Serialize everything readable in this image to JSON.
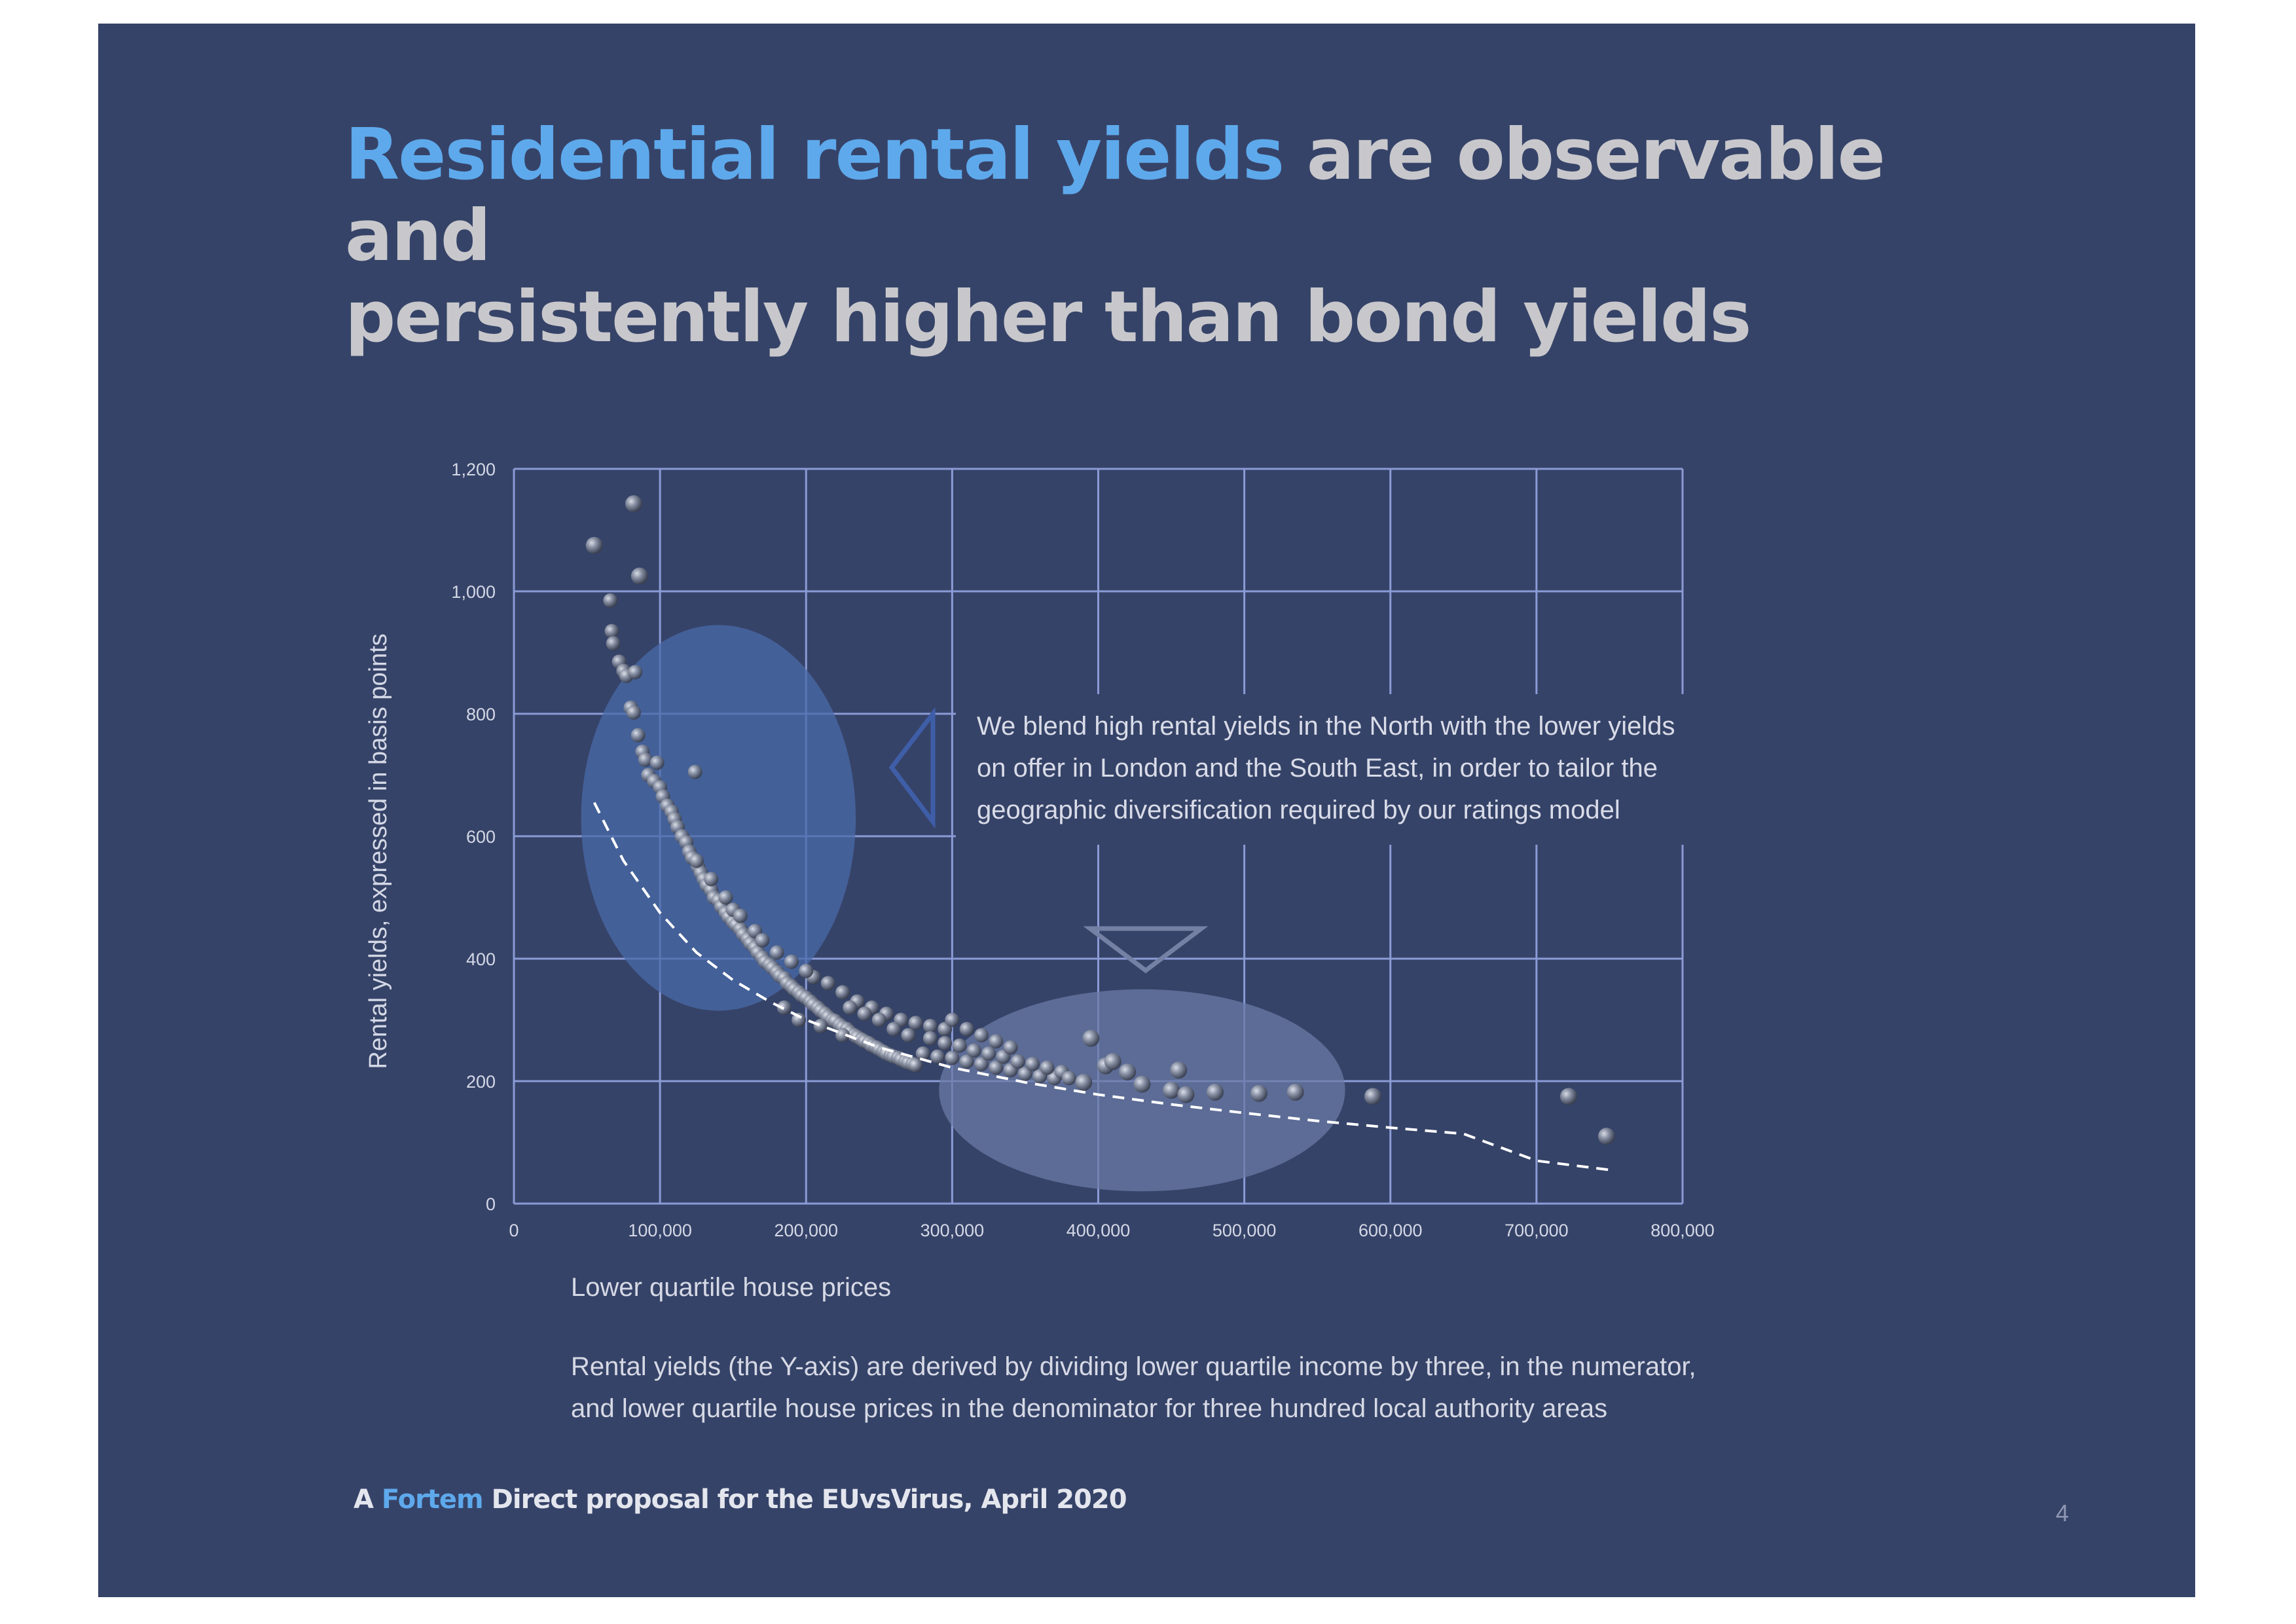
{
  "slide": {
    "title_highlight": "Residential rental yields",
    "title_rest_line1": " are observable and",
    "title_line2": "persistently higher than bond yields",
    "callout_lines": [
      "We blend high rental yields in the North with the lower yields",
      "on offer in London and the South East, in order to tailor the",
      "geographic diversification required by our ratings model"
    ],
    "note_lines": [
      "Rental yields (the Y-axis) are derived by dividing lower quartile income by three, in the numerator,",
      "and lower quartile house prices in the denominator for three hundred local authority areas"
    ],
    "footer": {
      "prefix": "A ",
      "brand": "Fortem",
      "suffix": " Direct proposal for the EUvsVirus, April 2020"
    },
    "page_number": "4"
  },
  "colors": {
    "background": "#364368",
    "title_highlight": "#5ea9ec",
    "title_text": "#c8c8cc",
    "grid": "#8a9bd6",
    "ellipse_left": "#4a6aa8",
    "ellipse_right": "#6a7aa6",
    "trend": "#ffffff",
    "points": "#9aa0b0"
  },
  "chart_data": {
    "type": "scatter",
    "title": "",
    "xlabel": "Lower quartile house prices",
    "ylabel": "Rental yields, expressed in basis points",
    "xlim": [
      0,
      800000
    ],
    "ylim": [
      0,
      1200
    ],
    "x_ticks": [
      0,
      100000,
      200000,
      300000,
      400000,
      500000,
      600000,
      700000,
      800000
    ],
    "x_tick_labels": [
      "0",
      "100,000",
      "200,000",
      "300,000",
      "400,000",
      "500,000",
      "600,000",
      "700,000",
      "800,000"
    ],
    "y_ticks": [
      0,
      200,
      400,
      600,
      800,
      1000,
      1200
    ],
    "y_tick_labels": [
      "0",
      "200",
      "400",
      "600",
      "800",
      "1,000",
      "1,200"
    ],
    "grid": true,
    "highlight_regions": [
      {
        "name": "North (high yields)",
        "x_center": 140000,
        "y_center": 630,
        "x_radius": 94000,
        "y_radius": 315
      },
      {
        "name": "London and South East (lower yields)",
        "x_center": 430000,
        "y_center": 185,
        "x_radius": 139000,
        "y_radius": 165
      }
    ],
    "trendline": {
      "type": "power",
      "x": [
        55000,
        75000,
        100000,
        125000,
        150000,
        175000,
        200000,
        250000,
        300000,
        350000,
        400000,
        450000,
        500000,
        550000,
        600000,
        650000,
        700000,
        750000
      ],
      "y": [
        655,
        560,
        475,
        410,
        365,
        330,
        300,
        255,
        222,
        198,
        178,
        162,
        148,
        135,
        124,
        114,
        70,
        55
      ]
    },
    "series": [
      {
        "name": "Local authority areas",
        "points": [
          [
            55000,
            1075
          ],
          [
            82000,
            1143
          ],
          [
            86000,
            1025
          ],
          [
            66000,
            985
          ],
          [
            67000,
            935
          ],
          [
            68000,
            915
          ],
          [
            72000,
            885
          ],
          [
            75000,
            870
          ],
          [
            77000,
            862
          ],
          [
            83000,
            868
          ],
          [
            80000,
            810
          ],
          [
            82000,
            802
          ],
          [
            85000,
            765
          ],
          [
            88000,
            738
          ],
          [
            90000,
            725
          ],
          [
            92000,
            700
          ],
          [
            96000,
            690
          ],
          [
            98000,
            720
          ],
          [
            100000,
            680
          ],
          [
            102000,
            665
          ],
          [
            105000,
            650
          ],
          [
            108000,
            640
          ],
          [
            110000,
            628
          ],
          [
            112000,
            615
          ],
          [
            115000,
            600
          ],
          [
            118000,
            590
          ],
          [
            120000,
            575
          ],
          [
            122000,
            565
          ],
          [
            124000,
            705
          ],
          [
            126000,
            550
          ],
          [
            128000,
            540
          ],
          [
            130000,
            530
          ],
          [
            132000,
            520
          ],
          [
            135000,
            512
          ],
          [
            137000,
            500
          ],
          [
            140000,
            495
          ],
          [
            142000,
            485
          ],
          [
            145000,
            475
          ],
          [
            147000,
            468
          ],
          [
            150000,
            460
          ],
          [
            152000,
            455
          ],
          [
            155000,
            448
          ],
          [
            157000,
            440
          ],
          [
            160000,
            432
          ],
          [
            162000,
            425
          ],
          [
            165000,
            418
          ],
          [
            167000,
            410
          ],
          [
            170000,
            402
          ],
          [
            172000,
            395
          ],
          [
            175000,
            390
          ],
          [
            177000,
            385
          ],
          [
            180000,
            378
          ],
          [
            182000,
            372
          ],
          [
            185000,
            368
          ],
          [
            187000,
            360
          ],
          [
            190000,
            355
          ],
          [
            192000,
            350
          ],
          [
            195000,
            345
          ],
          [
            197000,
            340
          ],
          [
            200000,
            336
          ],
          [
            203000,
            330
          ],
          [
            205000,
            325
          ],
          [
            208000,
            320
          ],
          [
            210000,
            315
          ],
          [
            213000,
            310
          ],
          [
            215000,
            305
          ],
          [
            218000,
            300
          ],
          [
            220000,
            298
          ],
          [
            223000,
            292
          ],
          [
            225000,
            288
          ],
          [
            228000,
            285
          ],
          [
            230000,
            280
          ],
          [
            233000,
            275
          ],
          [
            235000,
            272
          ],
          [
            238000,
            268
          ],
          [
            240000,
            265
          ],
          [
            243000,
            262
          ],
          [
            245000,
            258
          ],
          [
            248000,
            255
          ],
          [
            250000,
            252
          ],
          [
            253000,
            248
          ],
          [
            255000,
            245
          ],
          [
            258000,
            242
          ],
          [
            260000,
            240
          ],
          [
            263000,
            238
          ],
          [
            265000,
            235
          ],
          [
            268000,
            232
          ],
          [
            270000,
            230
          ],
          [
            273000,
            228
          ],
          [
            275000,
            226
          ],
          [
            205000,
            370
          ],
          [
            215000,
            360
          ],
          [
            225000,
            345
          ],
          [
            235000,
            330
          ],
          [
            245000,
            320
          ],
          [
            255000,
            310
          ],
          [
            265000,
            300
          ],
          [
            275000,
            295
          ],
          [
            285000,
            290
          ],
          [
            295000,
            285
          ],
          [
            180000,
            410
          ],
          [
            190000,
            395
          ],
          [
            200000,
            380
          ],
          [
            165000,
            445
          ],
          [
            170000,
            430
          ],
          [
            150000,
            480
          ],
          [
            155000,
            470
          ],
          [
            145000,
            500
          ],
          [
            135000,
            530
          ],
          [
            125000,
            560
          ],
          [
            280000,
            245
          ],
          [
            290000,
            240
          ],
          [
            300000,
            238
          ],
          [
            310000,
            232
          ],
          [
            320000,
            228
          ],
          [
            330000,
            222
          ],
          [
            340000,
            218
          ],
          [
            350000,
            212
          ],
          [
            360000,
            208
          ],
          [
            370000,
            205
          ],
          [
            285000,
            270
          ],
          [
            295000,
            262
          ],
          [
            305000,
            258
          ],
          [
            315000,
            250
          ],
          [
            325000,
            245
          ],
          [
            335000,
            240
          ],
          [
            345000,
            232
          ],
          [
            355000,
            228
          ],
          [
            365000,
            222
          ],
          [
            375000,
            215
          ],
          [
            300000,
            300
          ],
          [
            310000,
            285
          ],
          [
            320000,
            275
          ],
          [
            330000,
            265
          ],
          [
            340000,
            255
          ],
          [
            260000,
            285
          ],
          [
            270000,
            275
          ],
          [
            250000,
            300
          ],
          [
            240000,
            310
          ],
          [
            230000,
            320
          ],
          [
            380000,
            205
          ],
          [
            390000,
            198
          ],
          [
            395000,
            270
          ],
          [
            405000,
            225
          ],
          [
            410000,
            232
          ],
          [
            420000,
            215
          ],
          [
            430000,
            195
          ],
          [
            450000,
            185
          ],
          [
            455000,
            218
          ],
          [
            460000,
            178
          ],
          [
            480000,
            182
          ],
          [
            510000,
            180
          ],
          [
            535000,
            182
          ],
          [
            588000,
            175
          ],
          [
            722000,
            175
          ],
          [
            748000,
            110
          ],
          [
            185000,
            320
          ],
          [
            195000,
            300
          ],
          [
            210000,
            290
          ],
          [
            225000,
            275
          ]
        ]
      }
    ]
  }
}
